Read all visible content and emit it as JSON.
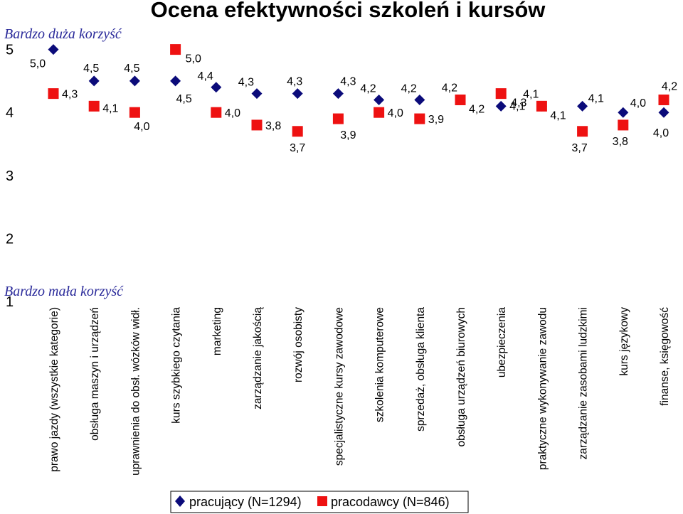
{
  "chart_data": {
    "type": "scatter",
    "title": "Ocena efektywności szkoleń i kursów",
    "annotations": {
      "top": "Bardzo duża korzyść",
      "bottom": "Bardzo mała korzyść"
    },
    "ylim": [
      1,
      5
    ],
    "yticks": [
      "1",
      "2",
      "3",
      "4",
      "5"
    ],
    "categories": [
      "prawo jazdy (wszystkie kategorie)",
      "obsługa maszyn i urządzeń",
      "uprawnienia do obsł. wózków widł.",
      "kurs szybkiego czytania",
      "marketing",
      "zarządzanie jakością",
      "rozwój osobisty",
      "specjalistyczne kursy zawodowe",
      "szkolenia komputerowe",
      "sprzedaż, obsługa klienta",
      "obsługa urządzeń biurowych",
      "ubezpieczenia",
      "praktyczne wykonywanie zawodu",
      "zarządzanie zasobami ludzkimi",
      "kurs językowy",
      "finanse, księgowość"
    ],
    "series": [
      {
        "name": "pracujący (N=1294)",
        "marker": "diamond",
        "color": "#0b0b7a",
        "values": [
          5.0,
          4.5,
          4.5,
          4.5,
          4.4,
          4.3,
          4.3,
          4.3,
          4.2,
          4.2,
          4.2,
          4.1,
          4.1,
          4.1,
          4.0,
          4.0
        ],
        "labels": [
          "5,0",
          "4,5",
          "4,5",
          "4,5",
          "4,4",
          "4,3",
          "4,3",
          "4,3",
          "4,2",
          "4,2",
          "4,2",
          "4,1",
          "4,1",
          "4,1",
          "4,0",
          "4,0"
        ]
      },
      {
        "name": "pracodawcy (N=846)",
        "marker": "square",
        "color": "#ee1111",
        "values": [
          4.3,
          4.1,
          4.0,
          5.0,
          4.0,
          3.8,
          3.7,
          3.9,
          4.0,
          3.9,
          4.2,
          4.3,
          4.1,
          3.7,
          3.8,
          4.2
        ],
        "labels": [
          "4,3",
          "4,1",
          "4,0",
          "5,0",
          "4,0",
          "3,8",
          "3,7",
          "3,9",
          "4,0",
          "3,9",
          "4,2",
          "4,3",
          "4,1",
          "3,7",
          "3,8",
          "4,2"
        ]
      }
    ],
    "legend": {
      "position": "bottom"
    }
  }
}
